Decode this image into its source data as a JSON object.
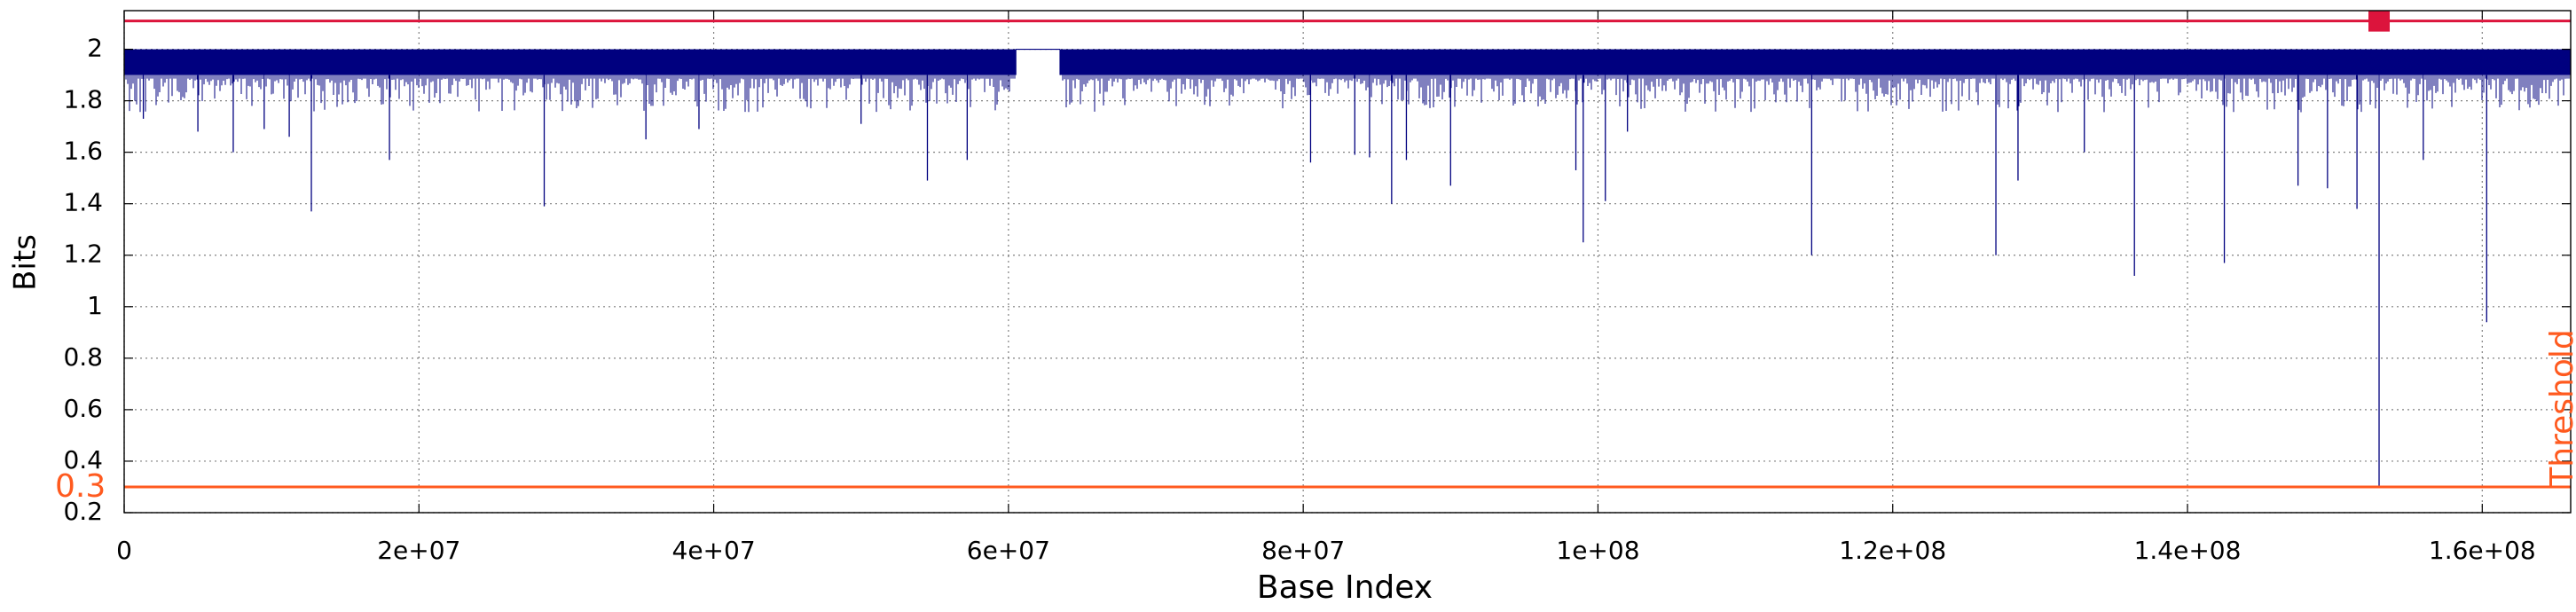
{
  "chart_data": {
    "type": "line",
    "xlabel": "Base Index",
    "ylabel": "Bits",
    "xlim": [
      0,
      166000000
    ],
    "ylim": [
      0.2,
      2.15
    ],
    "grid": true,
    "x_ticks": [
      {
        "value": 0,
        "label": "0"
      },
      {
        "value": 20000000,
        "label": "2e+07"
      },
      {
        "value": 40000000,
        "label": "4e+07"
      },
      {
        "value": 60000000,
        "label": "6e+07"
      },
      {
        "value": 80000000,
        "label": "8e+07"
      },
      {
        "value": 100000000,
        "label": "1e+08"
      },
      {
        "value": 120000000,
        "label": "1.2e+08"
      },
      {
        "value": 140000000,
        "label": "1.4e+08"
      },
      {
        "value": 160000000,
        "label": "1.6e+08"
      }
    ],
    "y_ticks": [
      {
        "value": 0.2,
        "label": "0.2"
      },
      {
        "value": 0.4,
        "label": "0.4"
      },
      {
        "value": 0.6,
        "label": "0.6"
      },
      {
        "value": 0.8,
        "label": "0.8"
      },
      {
        "value": 1.0,
        "label": "1"
      },
      {
        "value": 1.2,
        "label": "1.2"
      },
      {
        "value": 1.4,
        "label": "1.4"
      },
      {
        "value": 1.6,
        "label": "1.6"
      },
      {
        "value": 1.8,
        "label": "1.8"
      },
      {
        "value": 2.0,
        "label": "2"
      }
    ],
    "threshold": {
      "value": 0.3,
      "value_label": "0.3",
      "label": "Threshold",
      "color": "#ff5a1f"
    },
    "top_reference_line": {
      "value": 2.11,
      "color": "#dc143c"
    },
    "marker": {
      "x": 153000000,
      "y": 2.11,
      "color": "#dc143c"
    },
    "series": [
      {
        "color": "#00007f",
        "band_top": 2.0,
        "band_bottom": 1.9,
        "gap_x": [
          60500000,
          63500000
        ],
        "dips": [
          {
            "x": 1300000,
            "y": 1.73
          },
          {
            "x": 5000000,
            "y": 1.68
          },
          {
            "x": 7400000,
            "y": 1.6
          },
          {
            "x": 9500000,
            "y": 1.69
          },
          {
            "x": 11200000,
            "y": 1.66
          },
          {
            "x": 12700000,
            "y": 1.37
          },
          {
            "x": 18000000,
            "y": 1.57
          },
          {
            "x": 28500000,
            "y": 1.39
          },
          {
            "x": 35400000,
            "y": 1.65
          },
          {
            "x": 39000000,
            "y": 1.69
          },
          {
            "x": 50000000,
            "y": 1.71
          },
          {
            "x": 54500000,
            "y": 1.49
          },
          {
            "x": 57200000,
            "y": 1.57
          },
          {
            "x": 80500000,
            "y": 1.56
          },
          {
            "x": 83500000,
            "y": 1.59
          },
          {
            "x": 84500000,
            "y": 1.58
          },
          {
            "x": 86000000,
            "y": 1.4
          },
          {
            "x": 87000000,
            "y": 1.57
          },
          {
            "x": 90000000,
            "y": 1.47
          },
          {
            "x": 98500000,
            "y": 1.53
          },
          {
            "x": 99000000,
            "y": 1.25
          },
          {
            "x": 100500000,
            "y": 1.41
          },
          {
            "x": 102000000,
            "y": 1.68
          },
          {
            "x": 114500000,
            "y": 1.2
          },
          {
            "x": 127000000,
            "y": 1.2
          },
          {
            "x": 128500000,
            "y": 1.49
          },
          {
            "x": 133000000,
            "y": 1.6
          },
          {
            "x": 136400000,
            "y": 1.12
          },
          {
            "x": 142500000,
            "y": 1.17
          },
          {
            "x": 147500000,
            "y": 1.47
          },
          {
            "x": 149500000,
            "y": 1.46
          },
          {
            "x": 151500000,
            "y": 1.38
          },
          {
            "x": 153000000,
            "y": 0.3
          },
          {
            "x": 156000000,
            "y": 1.57
          },
          {
            "x": 160300000,
            "y": 0.94
          }
        ]
      }
    ]
  }
}
